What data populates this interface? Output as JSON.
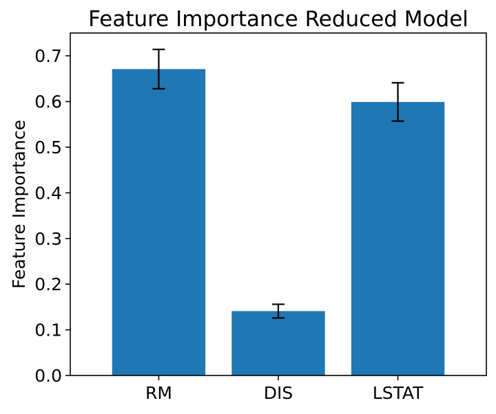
{
  "chart_data": {
    "type": "bar",
    "title": "Feature Importance Reduced Model",
    "xlabel": "",
    "ylabel": "Feature Importance",
    "categories": [
      "RM",
      "DIS",
      "LSTAT"
    ],
    "values": [
      0.671,
      0.141,
      0.599
    ],
    "errors": [
      0.043,
      0.015,
      0.042
    ],
    "ylim": [
      0.0,
      0.75
    ],
    "yticks": [
      0.0,
      0.1,
      0.2,
      0.3,
      0.4,
      0.5,
      0.6,
      0.7
    ],
    "ytick_labels": [
      "0.0",
      "0.1",
      "0.2",
      "0.3",
      "0.4",
      "0.5",
      "0.6",
      "0.7"
    ],
    "bar_color": "#1f77b4",
    "error_color": "#000000",
    "grid": false,
    "legend": "none"
  }
}
